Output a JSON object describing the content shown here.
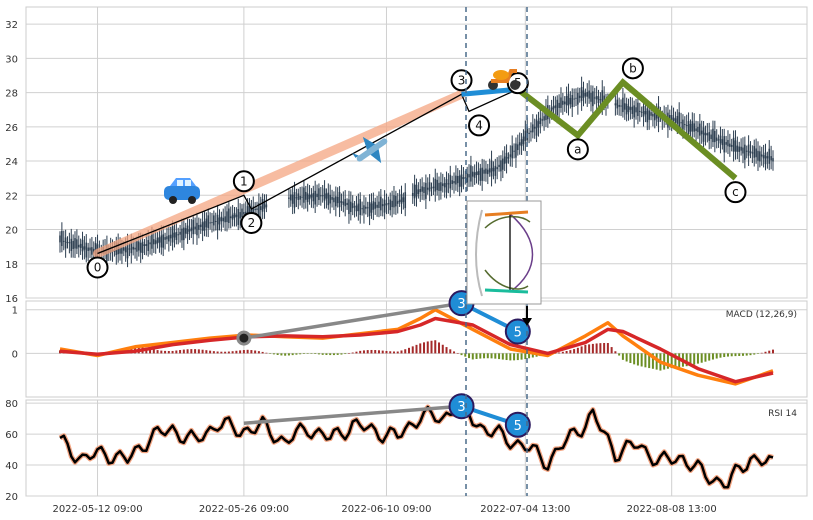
{
  "chart_data": [
    {
      "type": "candlestick",
      "panel": "price",
      "ylim": [
        16,
        33
      ],
      "y_ticks": [
        16,
        18,
        20,
        22,
        24,
        26,
        28,
        30,
        32
      ],
      "x_tick_labels": [
        "2022-05-12 09:00",
        "2022-05-26 09:00",
        "2022-06-10 09:00",
        "2022-07-04 13:00",
        "2022-08-08 13:00"
      ],
      "price_path_x": [
        0,
        5,
        10,
        15,
        20,
        25,
        30,
        35,
        40,
        45,
        48,
        52,
        55,
        58,
        60,
        62,
        66,
        70,
        74,
        78,
        82,
        86,
        90,
        95
      ],
      "price_path_y": [
        19.4,
        18.7,
        18.9,
        19.6,
        20.4,
        21.0,
        21.8,
        22.0,
        21.2,
        21.6,
        22.3,
        22.7,
        23.2,
        23.5,
        24.3,
        25.4,
        27.2,
        27.9,
        27.3,
        26.8,
        26.4,
        25.6,
        24.8,
        24.1
      ],
      "impulse_wave": {
        "labels": [
          "0",
          "1",
          "2",
          "3",
          "4",
          "5"
        ],
        "x": [
          5,
          24.5,
          25.5,
          53.5,
          54.5,
          61
        ],
        "y": [
          18.6,
          22.0,
          21.2,
          27.9,
          26.9,
          28.2
        ]
      },
      "corrective_wave": {
        "labels": [
          "a",
          "b",
          "c"
        ],
        "x": [
          69,
          75,
          90
        ],
        "y": [
          25.5,
          28.6,
          23.0
        ]
      },
      "markers": [
        "car",
        "airplane",
        "scooter"
      ],
      "colors": {
        "impulse": "#f4a582",
        "corrective": "#6b8e23",
        "wave3_5": "#1f8dd6",
        "candle": "#2c3e50"
      }
    },
    {
      "type": "line",
      "panel": "macd",
      "title": "MACD (12,26,9)",
      "ylim": [
        -1,
        1.2
      ],
      "y_ticks": [
        0,
        1
      ],
      "series": [
        {
          "color": "#ff7f0e",
          "x": [
            0,
            5,
            10,
            15,
            20,
            25,
            30,
            35,
            40,
            45,
            48,
            50,
            55,
            60,
            65,
            70,
            73,
            75,
            80,
            85,
            90,
            95
          ],
          "values": [
            0.1,
            -0.05,
            0.15,
            0.25,
            0.35,
            0.42,
            0.38,
            0.35,
            0.45,
            0.55,
            0.8,
            1.0,
            0.55,
            0.1,
            -0.05,
            0.4,
            0.7,
            0.4,
            -0.2,
            -0.5,
            -0.7,
            -0.4
          ]
        },
        {
          "color": "#d62728",
          "x": [
            0,
            5,
            10,
            15,
            20,
            25,
            30,
            35,
            40,
            45,
            48,
            50,
            55,
            60,
            65,
            70,
            73,
            75,
            80,
            85,
            90,
            95
          ],
          "values": [
            0.05,
            -0.02,
            0.05,
            0.2,
            0.3,
            0.38,
            0.4,
            0.38,
            0.42,
            0.5,
            0.65,
            0.8,
            0.65,
            0.2,
            0.0,
            0.25,
            0.55,
            0.5,
            0.1,
            -0.35,
            -0.65,
            -0.45
          ]
        }
      ],
      "divergence": {
        "from_x": 24.5,
        "from_y": 0.35,
        "to_x": 53.5,
        "to_y": 1.15,
        "labels": [
          "3",
          "5"
        ],
        "x": [
          53.5,
          61
        ],
        "y": [
          1.15,
          0.5
        ]
      }
    },
    {
      "type": "line",
      "panel": "rsi",
      "title": "RSI 14",
      "ylim": [
        20,
        82
      ],
      "y_ticks": [
        20,
        40,
        60,
        80
      ],
      "x": [
        0,
        3,
        6,
        9,
        12,
        15,
        18,
        21,
        24,
        27,
        30,
        33,
        36,
        39,
        42,
        45,
        48,
        51,
        53,
        56,
        59,
        62,
        65,
        68,
        71,
        74,
        77,
        80,
        83,
        86,
        89,
        92,
        95
      ],
      "values": [
        55,
        44,
        48,
        43,
        58,
        63,
        55,
        67,
        62,
        65,
        55,
        64,
        57,
        66,
        62,
        58,
        72,
        70,
        80,
        65,
        58,
        52,
        42,
        58,
        72,
        48,
        53,
        42,
        45,
        33,
        28,
        45,
        40
      ],
      "divergence": {
        "from_x": 24.5,
        "from_y": 67,
        "to_x": 53.5,
        "to_y": 78,
        "labels": [
          "3",
          "5"
        ],
        "x": [
          53.5,
          61
        ],
        "y": [
          78,
          66
        ]
      }
    }
  ]
}
